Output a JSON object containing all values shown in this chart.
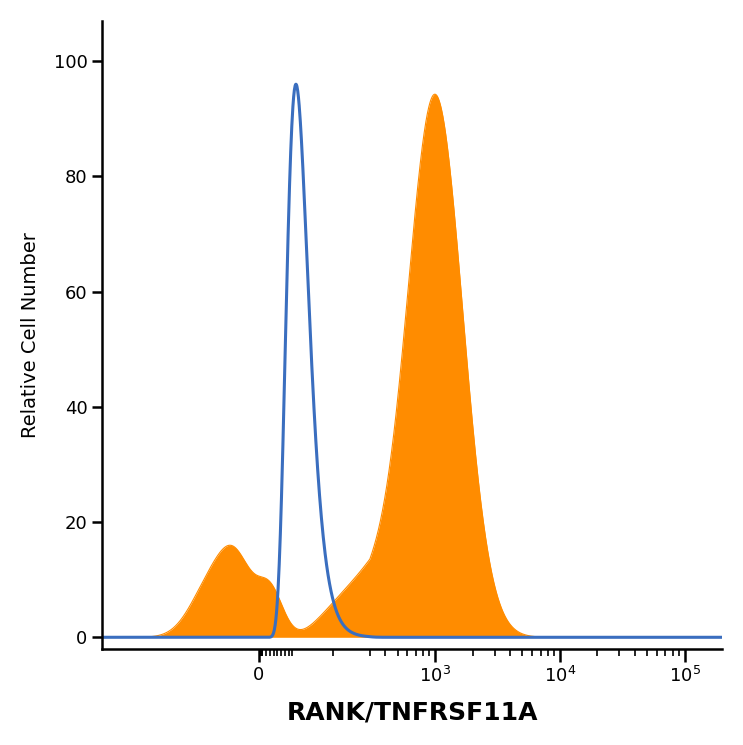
{
  "title": "",
  "xlabel": "RANK/TNFRSF11A",
  "ylabel": "Relative Cell Number",
  "xlabel_fontsize": 18,
  "ylabel_fontsize": 14,
  "xlabel_fontweight": "bold",
  "ylim": [
    -2,
    107
  ],
  "yticks": [
    0,
    20,
    40,
    60,
    80,
    100
  ],
  "blue_color": "#3A6EBF",
  "orange_color": "#FF8C00",
  "blue_linewidth": 2.2,
  "background_color": "#ffffff",
  "tick_label_fontsize": 13,
  "linthresh": 300,
  "linscale": 0.8,
  "xlim_left": -700,
  "xlim_right": 200000,
  "blue_peak_x": 100,
  "blue_peak_sigma_log": 0.13,
  "blue_peak_height": 96,
  "orange_peak_x": 1000,
  "orange_peak_sigma_log": 0.22,
  "orange_peak_height": 94,
  "orange_shoulder_x": 300,
  "orange_shoulder_sigma_log": 0.2,
  "orange_shoulder_height": 8,
  "orange_bump1_x": -130,
  "orange_bump1_sigma": 55,
  "orange_bump1_height": 9,
  "orange_bump2_x": -60,
  "orange_bump2_sigma": 45,
  "orange_bump2_height": 11,
  "orange_bump3_x": 30,
  "orange_bump3_sigma": 35,
  "orange_bump3_height": 8
}
